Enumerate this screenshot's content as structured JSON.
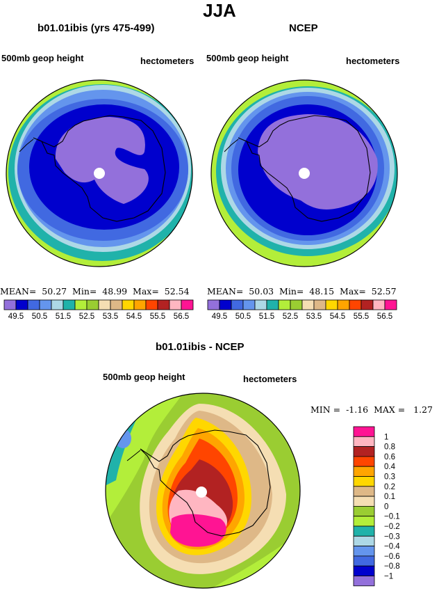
{
  "title": "JJA",
  "panels": [
    {
      "title": "b01.01ibis (yrs 475-499)",
      "left_label": "500mb geop height",
      "right_label": "hectometers",
      "stats": "MEAN=  50.27  Min=  48.99  Max=  52.54"
    },
    {
      "title": "NCEP",
      "left_label": "500mb geop height",
      "right_label": "hectometers",
      "stats": "MEAN=  50.03  Min=  48.15  Max=  52.57"
    },
    {
      "title": "b01.01ibis - NCEP",
      "left_label": "500mb geop height",
      "right_label": "hectometers",
      "stats": "MIN =  -1.16  MAX =   1.27"
    }
  ],
  "colorbar_top": {
    "colors": [
      "#9370db",
      "#0000cd",
      "#4169e1",
      "#6495ed",
      "#add8e6",
      "#20b2aa",
      "#b3ee3a",
      "#9acd32",
      "#f5deb3",
      "#deb887",
      "#ffd700",
      "#ffa500",
      "#ff4500",
      "#b22222",
      "#ffb6c1",
      "#ff1493"
    ],
    "labels": [
      "49.5",
      "50.5",
      "51.5",
      "52.5",
      "53.5",
      "54.5",
      "55.5",
      "56.5"
    ]
  },
  "colorbar_diff": {
    "colors": [
      "#ff1493",
      "#ffb6c1",
      "#b22222",
      "#ff4500",
      "#ffa500",
      "#ffd700",
      "#deb887",
      "#f5deb3",
      "#9acd32",
      "#b3ee3a",
      "#20b2aa",
      "#add8e6",
      "#6495ed",
      "#4169e1",
      "#0000cd",
      "#9370db"
    ],
    "labels": [
      "1",
      "0.8",
      "0.6",
      "0.4",
      "0.3",
      "0.2",
      "0.1",
      "0",
      "−0.1",
      "−0.2",
      "−0.3",
      "−0.4",
      "−0.6",
      "−0.8",
      "−1"
    ]
  }
}
